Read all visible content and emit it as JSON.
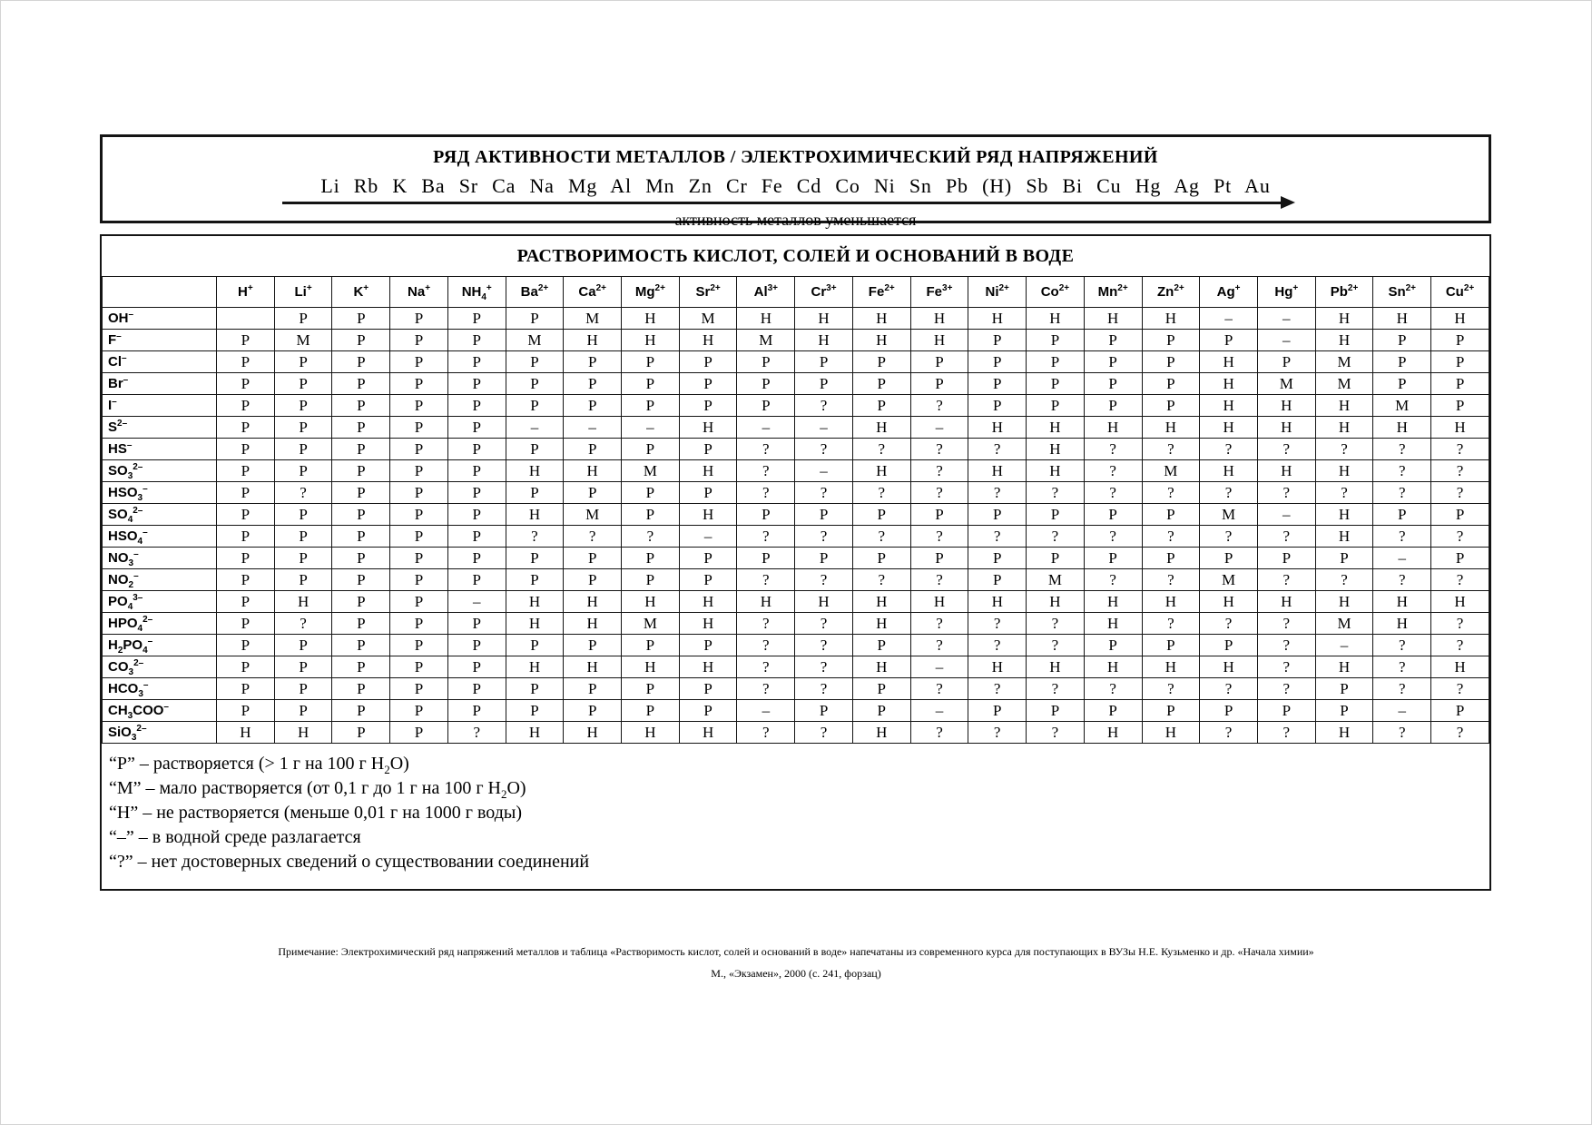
{
  "activity_box": {
    "title": "РЯД АКТИВНОСТИ МЕТАЛЛОВ / ЭЛЕКТРОХИМИЧЕСКИЙ РЯД НАПРЯЖЕНИЙ",
    "series": "Li Rb K Ba Sr Ca Na Mg Al Mn Zn Cr Fe Cd Co Ni Sn Pb (H) Sb Bi Cu Hg Ag Pt Au",
    "caption": "активность металлов уменьшается"
  },
  "solubility": {
    "title": "РАСТВОРИМОСТЬ КИСЛОТ, СОЛЕЙ И ОСНОВАНИЙ В ВОДЕ",
    "col_headers": [
      "H^+^",
      "Li^+^",
      "K^+^",
      "Na^+^",
      "NH_4_^+^",
      "Ba^2+^",
      "Ca^2+^",
      "Mg^2+^",
      "Sr^2+^",
      "Al^3+^",
      "Cr^3+^",
      "Fe^2+^",
      "Fe^3+^",
      "Ni^2+^",
      "Co^2+^",
      "Mn^2+^",
      "Zn^2+^",
      "Ag^+^",
      "Hg^+^",
      "Pb^2+^",
      "Sn^2+^",
      "Cu^2+^"
    ],
    "rows": [
      {
        "label": "OH^–^",
        "values": [
          "",
          "Р",
          "Р",
          "Р",
          "Р",
          "Р",
          "М",
          "Н",
          "М",
          "Н",
          "Н",
          "Н",
          "Н",
          "Н",
          "Н",
          "Н",
          "Н",
          "–",
          "–",
          "Н",
          "Н",
          "Н"
        ]
      },
      {
        "label": "F^–^",
        "values": [
          "Р",
          "М",
          "Р",
          "Р",
          "Р",
          "М",
          "Н",
          "Н",
          "Н",
          "М",
          "Н",
          "Н",
          "Н",
          "Р",
          "Р",
          "Р",
          "Р",
          "Р",
          "–",
          "Н",
          "Р",
          "Р"
        ]
      },
      {
        "label": "Cl^–^",
        "values": [
          "Р",
          "Р",
          "Р",
          "Р",
          "Р",
          "Р",
          "Р",
          "Р",
          "Р",
          "Р",
          "Р",
          "Р",
          "Р",
          "Р",
          "Р",
          "Р",
          "Р",
          "Н",
          "Р",
          "М",
          "Р",
          "Р"
        ]
      },
      {
        "label": "Br^–^",
        "values": [
          "Р",
          "Р",
          "Р",
          "Р",
          "Р",
          "Р",
          "Р",
          "Р",
          "Р",
          "Р",
          "Р",
          "Р",
          "Р",
          "Р",
          "Р",
          "Р",
          "Р",
          "Н",
          "М",
          "М",
          "Р",
          "Р"
        ]
      },
      {
        "label": "I^–^",
        "values": [
          "Р",
          "Р",
          "Р",
          "Р",
          "Р",
          "Р",
          "Р",
          "Р",
          "Р",
          "Р",
          "?",
          "Р",
          "?",
          "Р",
          "Р",
          "Р",
          "Р",
          "Н",
          "Н",
          "Н",
          "М",
          "Р"
        ]
      },
      {
        "label": "S^2–^",
        "values": [
          "Р",
          "Р",
          "Р",
          "Р",
          "Р",
          "–",
          "–",
          "–",
          "Н",
          "–",
          "–",
          "Н",
          "–",
          "Н",
          "Н",
          "Н",
          "Н",
          "Н",
          "Н",
          "Н",
          "Н",
          "Н"
        ]
      },
      {
        "label": "HS^–^",
        "values": [
          "Р",
          "Р",
          "Р",
          "Р",
          "Р",
          "Р",
          "Р",
          "Р",
          "Р",
          "?",
          "?",
          "?",
          "?",
          "?",
          "Н",
          "?",
          "?",
          "?",
          "?",
          "?",
          "?",
          "?"
        ]
      },
      {
        "label": "SO_3_^2–^",
        "values": [
          "Р",
          "Р",
          "Р",
          "Р",
          "Р",
          "Н",
          "Н",
          "М",
          "Н",
          "?",
          "–",
          "Н",
          "?",
          "Н",
          "Н",
          "?",
          "М",
          "Н",
          "Н",
          "Н",
          "?",
          "?"
        ]
      },
      {
        "label": "HSO_3_^–^",
        "values": [
          "Р",
          "?",
          "Р",
          "Р",
          "Р",
          "Р",
          "Р",
          "Р",
          "Р",
          "?",
          "?",
          "?",
          "?",
          "?",
          "?",
          "?",
          "?",
          "?",
          "?",
          "?",
          "?",
          "?"
        ]
      },
      {
        "label": "SO_4_^2–^",
        "values": [
          "Р",
          "Р",
          "Р",
          "Р",
          "Р",
          "Н",
          "М",
          "Р",
          "Н",
          "Р",
          "Р",
          "Р",
          "Р",
          "Р",
          "Р",
          "Р",
          "Р",
          "М",
          "–",
          "Н",
          "Р",
          "Р"
        ]
      },
      {
        "label": "HSO_4_^–^",
        "values": [
          "Р",
          "Р",
          "Р",
          "Р",
          "Р",
          "?",
          "?",
          "?",
          "–",
          "?",
          "?",
          "?",
          "?",
          "?",
          "?",
          "?",
          "?",
          "?",
          "?",
          "Н",
          "?",
          "?"
        ]
      },
      {
        "label": "NO_3_^–^",
        "values": [
          "Р",
          "Р",
          "Р",
          "Р",
          "Р",
          "Р",
          "Р",
          "Р",
          "Р",
          "Р",
          "Р",
          "Р",
          "Р",
          "Р",
          "Р",
          "Р",
          "Р",
          "Р",
          "Р",
          "Р",
          "–",
          "Р"
        ]
      },
      {
        "label": "NO_2_^–^",
        "values": [
          "Р",
          "Р",
          "Р",
          "Р",
          "Р",
          "Р",
          "Р",
          "Р",
          "Р",
          "?",
          "?",
          "?",
          "?",
          "Р",
          "М",
          "?",
          "?",
          "М",
          "?",
          "?",
          "?",
          "?"
        ]
      },
      {
        "label": "PO_4_^3–^",
        "values": [
          "Р",
          "Н",
          "Р",
          "Р",
          "–",
          "Н",
          "Н",
          "Н",
          "Н",
          "Н",
          "Н",
          "Н",
          "Н",
          "Н",
          "Н",
          "Н",
          "Н",
          "Н",
          "Н",
          "Н",
          "Н",
          "Н"
        ]
      },
      {
        "label": "HPO_4_^2–^",
        "values": [
          "Р",
          "?",
          "Р",
          "Р",
          "Р",
          "Н",
          "Н",
          "М",
          "Н",
          "?",
          "?",
          "Н",
          "?",
          "?",
          "?",
          "Н",
          "?",
          "?",
          "?",
          "М",
          "Н",
          "?"
        ]
      },
      {
        "label": "H_2_PO_4_^–^",
        "values": [
          "Р",
          "Р",
          "Р",
          "Р",
          "Р",
          "Р",
          "Р",
          "Р",
          "Р",
          "?",
          "?",
          "Р",
          "?",
          "?",
          "?",
          "Р",
          "Р",
          "Р",
          "?",
          "–",
          "?",
          "?"
        ]
      },
      {
        "label": "CO_3_^2–^",
        "values": [
          "Р",
          "Р",
          "Р",
          "Р",
          "Р",
          "Н",
          "Н",
          "Н",
          "Н",
          "?",
          "?",
          "Н",
          "–",
          "Н",
          "Н",
          "Н",
          "Н",
          "Н",
          "?",
          "Н",
          "?",
          "Н"
        ]
      },
      {
        "label": "HCO_3_^–^",
        "values": [
          "Р",
          "Р",
          "Р",
          "Р",
          "Р",
          "Р",
          "Р",
          "Р",
          "Р",
          "?",
          "?",
          "Р",
          "?",
          "?",
          "?",
          "?",
          "?",
          "?",
          "?",
          "Р",
          "?",
          "?"
        ]
      },
      {
        "label": "CH_3_COO^–^",
        "values": [
          "Р",
          "Р",
          "Р",
          "Р",
          "Р",
          "Р",
          "Р",
          "Р",
          "Р",
          "–",
          "Р",
          "Р",
          "–",
          "Р",
          "Р",
          "Р",
          "Р",
          "Р",
          "Р",
          "Р",
          "–",
          "Р"
        ]
      },
      {
        "label": "SiO_3_^2–^",
        "values": [
          "Н",
          "Н",
          "Р",
          "Р",
          "?",
          "Н",
          "Н",
          "Н",
          "Н",
          "?",
          "?",
          "Н",
          "?",
          "?",
          "?",
          "Н",
          "Н",
          "?",
          "?",
          "Н",
          "?",
          "?"
        ]
      }
    ]
  },
  "legend": [
    "“Р” – растворяется (> 1 г на 100 г H_2_O)",
    "“М” – мало растворяется (от 0,1 г до 1 г на 100 г H_2_O)",
    "“Н” – не растворяется (меньше 0,01 г на 1000 г воды)",
    "“–” – в водной среде разлагается",
    "“?” – нет достоверных сведений о существовании соединений"
  ],
  "footnote": {
    "line1": "Примечание: Электрохимический ряд напряжений металлов и таблица «Растворимость кислот, солей и оснований в воде» напечатаны из современного курса для поступающих в ВУЗы Н.Е. Кузьменко и др. «Начала химии»",
    "line2": "М., «Экзамен», 2000  (с. 241, форзац)"
  }
}
